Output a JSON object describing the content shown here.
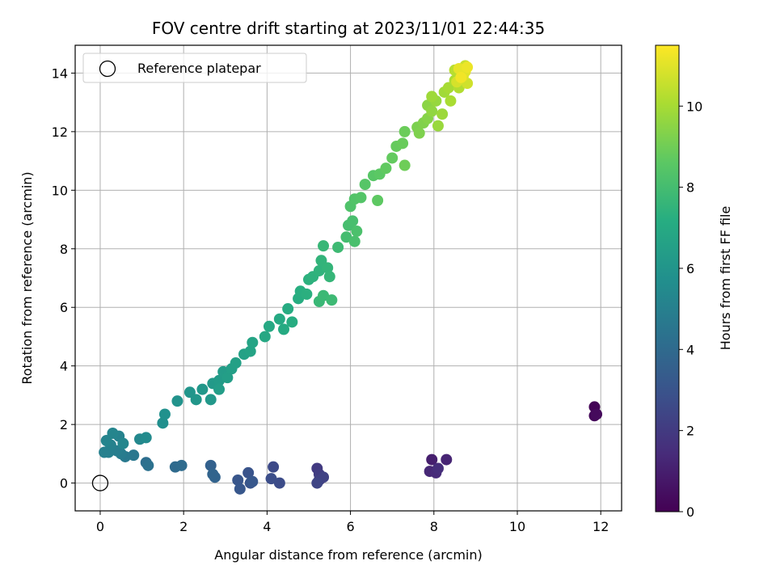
{
  "chart_data": {
    "type": "scatter",
    "title": "FOV centre drift starting at 2023/11/01 22:44:35",
    "xlabel": "Angular distance from reference (arcmin)",
    "ylabel": "Rotation from reference (arcmin)",
    "xlim": [
      -0.6,
      12.5
    ],
    "ylim": [
      -0.95,
      14.95
    ],
    "xticks": [
      0,
      2,
      4,
      6,
      8,
      10,
      12
    ],
    "yticks": [
      0,
      2,
      4,
      6,
      8,
      10,
      12,
      14
    ],
    "grid": true,
    "legend": {
      "position": "top-left",
      "entries": [
        "Reference platepar"
      ]
    },
    "reference_point": {
      "x": 0,
      "y": 0,
      "label": "Reference platepar"
    },
    "colormap": "viridis",
    "colorbar": {
      "label": "Hours from first FF file",
      "range": [
        0,
        11.5
      ],
      "ticks": [
        0,
        2,
        4,
        6,
        8,
        10
      ]
    },
    "points": [
      [
        11.85,
        2.6,
        0.1
      ],
      [
        11.85,
        2.3,
        0.2
      ],
      [
        11.9,
        2.35,
        0.3
      ],
      [
        7.95,
        0.8,
        1.0
      ],
      [
        8.3,
        0.8,
        1.2
      ],
      [
        7.9,
        0.4,
        1.3
      ],
      [
        8.05,
        0.35,
        1.4
      ],
      [
        8.1,
        0.5,
        1.5
      ],
      [
        5.2,
        0.5,
        2.0
      ],
      [
        5.25,
        0.3,
        2.1
      ],
      [
        5.25,
        0.1,
        2.2
      ],
      [
        5.35,
        0.2,
        2.3
      ],
      [
        5.2,
        0.0,
        2.4
      ],
      [
        4.15,
        0.55,
        2.6
      ],
      [
        4.3,
        0.0,
        2.7
      ],
      [
        4.1,
        0.15,
        2.75
      ],
      [
        3.55,
        0.35,
        3.0
      ],
      [
        3.6,
        0.0,
        3.05
      ],
      [
        3.3,
        0.1,
        3.1
      ],
      [
        3.35,
        -0.2,
        3.15
      ],
      [
        3.65,
        0.05,
        3.2
      ],
      [
        2.65,
        0.6,
        3.6
      ],
      [
        2.75,
        0.2,
        3.7
      ],
      [
        2.7,
        0.3,
        3.75
      ],
      [
        1.8,
        0.55,
        4.0
      ],
      [
        1.95,
        0.6,
        4.05
      ],
      [
        1.1,
        0.7,
        4.2
      ],
      [
        1.15,
        0.6,
        4.3
      ],
      [
        0.8,
        0.95,
        4.6
      ],
      [
        0.6,
        0.9,
        4.7
      ],
      [
        0.5,
        1.0,
        4.8
      ],
      [
        0.4,
        1.1,
        4.9
      ],
      [
        0.2,
        1.05,
        4.95
      ],
      [
        0.1,
        1.05,
        5.0
      ],
      [
        0.25,
        1.3,
        5.05
      ],
      [
        0.45,
        1.6,
        5.1
      ],
      [
        0.15,
        1.45,
        5.2
      ],
      [
        0.3,
        1.7,
        5.25
      ],
      [
        0.55,
        1.35,
        5.3
      ],
      [
        0.95,
        1.5,
        5.4
      ],
      [
        1.1,
        1.55,
        5.5
      ],
      [
        1.5,
        2.05,
        5.7
      ],
      [
        1.55,
        2.35,
        5.8
      ],
      [
        1.85,
        2.8,
        5.9
      ],
      [
        2.15,
        3.1,
        6.0
      ],
      [
        2.3,
        2.85,
        6.05
      ],
      [
        2.45,
        3.2,
        6.1
      ],
      [
        2.65,
        2.85,
        6.15
      ],
      [
        2.7,
        3.4,
        6.2
      ],
      [
        2.85,
        3.5,
        6.3
      ],
      [
        2.95,
        3.8,
        6.35
      ],
      [
        2.85,
        3.2,
        6.4
      ],
      [
        3.05,
        3.6,
        6.45
      ],
      [
        3.15,
        3.9,
        6.5
      ],
      [
        3.25,
        4.1,
        6.55
      ],
      [
        3.45,
        4.4,
        6.6
      ],
      [
        3.6,
        4.5,
        6.7
      ],
      [
        3.65,
        4.8,
        6.75
      ],
      [
        3.95,
        5.0,
        6.9
      ],
      [
        4.05,
        5.35,
        6.95
      ],
      [
        4.3,
        5.6,
        7.0
      ],
      [
        4.4,
        5.25,
        7.05
      ],
      [
        4.5,
        5.95,
        7.1
      ],
      [
        4.6,
        5.5,
        7.15
      ],
      [
        4.75,
        6.3,
        7.2
      ],
      [
        4.8,
        6.55,
        7.25
      ],
      [
        4.95,
        6.45,
        7.3
      ],
      [
        5.0,
        6.95,
        7.35
      ],
      [
        5.1,
        7.05,
        7.4
      ],
      [
        5.25,
        7.25,
        7.45
      ],
      [
        5.3,
        7.6,
        7.5
      ],
      [
        5.45,
        7.35,
        7.55
      ],
      [
        5.5,
        7.05,
        7.6
      ],
      [
        5.35,
        8.1,
        7.65
      ],
      [
        5.25,
        6.2,
        7.7
      ],
      [
        5.35,
        6.4,
        7.75
      ],
      [
        5.55,
        6.25,
        7.8
      ],
      [
        5.7,
        8.05,
        7.85
      ],
      [
        5.9,
        8.4,
        8.0
      ],
      [
        5.95,
        8.8,
        8.05
      ],
      [
        6.05,
        8.95,
        8.1
      ],
      [
        6.1,
        8.25,
        8.15
      ],
      [
        6.15,
        8.6,
        8.2
      ],
      [
        6.0,
        9.45,
        8.3
      ],
      [
        6.1,
        9.7,
        8.35
      ],
      [
        6.25,
        9.75,
        8.4
      ],
      [
        6.35,
        10.2,
        8.45
      ],
      [
        6.55,
        10.5,
        8.5
      ],
      [
        6.7,
        10.55,
        8.6
      ],
      [
        6.65,
        9.65,
        8.65
      ],
      [
        6.85,
        10.75,
        8.7
      ],
      [
        7.0,
        11.1,
        8.75
      ],
      [
        7.1,
        11.5,
        8.8
      ],
      [
        7.25,
        11.6,
        8.85
      ],
      [
        7.3,
        12.0,
        8.9
      ],
      [
        7.3,
        10.85,
        8.95
      ],
      [
        7.6,
        12.15,
        9.2
      ],
      [
        7.65,
        11.95,
        9.25
      ],
      [
        7.75,
        12.3,
        9.3
      ],
      [
        7.85,
        12.45,
        9.4
      ],
      [
        7.85,
        12.9,
        9.5
      ],
      [
        7.95,
        12.7,
        9.6
      ],
      [
        8.05,
        13.05,
        9.7
      ],
      [
        8.1,
        12.2,
        9.75
      ],
      [
        8.2,
        12.6,
        9.8
      ],
      [
        7.95,
        13.2,
        9.85
      ],
      [
        8.25,
        13.35,
        9.9
      ],
      [
        8.35,
        13.5,
        10.0
      ],
      [
        8.4,
        13.05,
        10.05
      ],
      [
        8.5,
        13.75,
        10.1
      ],
      [
        8.6,
        13.5,
        10.2
      ],
      [
        8.5,
        14.1,
        10.3
      ],
      [
        8.65,
        13.9,
        10.4
      ],
      [
        8.7,
        14.1,
        10.5
      ],
      [
        8.75,
        14.25,
        10.6
      ],
      [
        8.8,
        13.65,
        10.7
      ],
      [
        8.55,
        13.7,
        10.8
      ],
      [
        8.7,
        13.9,
        10.9
      ],
      [
        8.75,
        14.05,
        11.0
      ],
      [
        8.6,
        14.15,
        11.1
      ],
      [
        8.8,
        14.2,
        11.2
      ],
      [
        8.65,
        13.85,
        11.3
      ]
    ]
  }
}
